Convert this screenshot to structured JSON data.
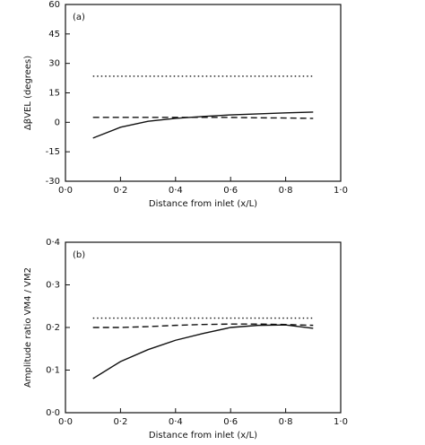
{
  "chart_data": [
    {
      "type": "line",
      "annotation": "(a)",
      "x_label": "Distance from inlet (x/L)",
      "y_label": "ΔβVEL (degrees)",
      "x": [
        0.1,
        0.2,
        0.3,
        0.4,
        0.5,
        0.6,
        0.7,
        0.8,
        0.9
      ],
      "series": [
        {
          "style": "dotted",
          "color": "#111111",
          "values": [
            23.5,
            23.5,
            23.5,
            23.5,
            23.5,
            23.5,
            23.5,
            23.5,
            23.5
          ]
        },
        {
          "style": "dashed",
          "color": "#111111",
          "values": [
            2.5,
            2.5,
            2.5,
            2.5,
            2.5,
            2.5,
            2.3,
            2.2,
            2.0
          ]
        },
        {
          "style": "solid",
          "color": "#111111",
          "values": [
            -8,
            -2.5,
            0.5,
            2,
            3,
            3.8,
            4.3,
            4.8,
            5.2
          ]
        }
      ],
      "xlim": [
        0,
        1
      ],
      "ylim": [
        -30,
        60
      ],
      "xticks": [
        {
          "value": 0,
          "label": "0·0"
        },
        {
          "value": 0.2,
          "label": "0·2"
        },
        {
          "value": 0.4,
          "label": "0·4"
        },
        {
          "value": 0.6,
          "label": "0·6"
        },
        {
          "value": 0.8,
          "label": "0·8"
        },
        {
          "value": 1,
          "label": "1·0"
        }
      ],
      "yticks": [
        -30,
        -15,
        0,
        15,
        30,
        45,
        60
      ]
    },
    {
      "type": "line",
      "annotation": "(b)",
      "x_label": "Distance from inlet (x/L)",
      "y_label": "Amplitude ratio VM4 / VM2",
      "x": [
        0.1,
        0.2,
        0.3,
        0.4,
        0.5,
        0.6,
        0.7,
        0.8,
        0.9
      ],
      "series": [
        {
          "style": "dotted",
          "color": "#111111",
          "values": [
            0.222,
            0.222,
            0.222,
            0.222,
            0.222,
            0.222,
            0.222,
            0.222,
            0.222
          ]
        },
        {
          "style": "dashed",
          "color": "#111111",
          "values": [
            0.2,
            0.2,
            0.202,
            0.205,
            0.207,
            0.208,
            0.208,
            0.207,
            0.205
          ]
        },
        {
          "style": "solid",
          "color": "#111111",
          "values": [
            0.08,
            0.12,
            0.148,
            0.17,
            0.186,
            0.2,
            0.205,
            0.206,
            0.198
          ]
        }
      ],
      "xlim": [
        0,
        1
      ],
      "ylim": [
        0,
        0.4
      ],
      "xticks": [
        {
          "value": 0,
          "label": "0·0"
        },
        {
          "value": 0.2,
          "label": "0·2"
        },
        {
          "value": 0.4,
          "label": "0·4"
        },
        {
          "value": 0.6,
          "label": "0·6"
        },
        {
          "value": 0.8,
          "label": "0·8"
        },
        {
          "value": 1,
          "label": "1·0"
        }
      ],
      "yticks": [
        {
          "value": 0,
          "label": "0·0"
        },
        {
          "value": 0.1,
          "label": "0·1"
        },
        {
          "value": 0.2,
          "label": "0·2"
        },
        {
          "value": 0.3,
          "label": "0·3"
        },
        {
          "value": 0.4,
          "label": "0·4"
        }
      ]
    }
  ]
}
